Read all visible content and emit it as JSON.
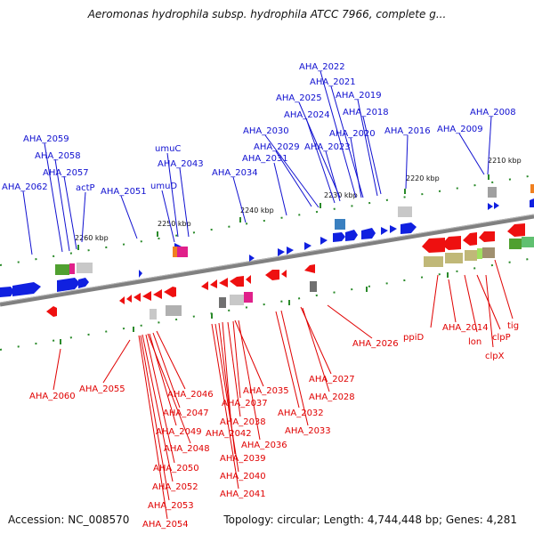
{
  "title": "Aeromonas hydrophila subsp. hydrophila ATCC 7966, complete g...",
  "footer": {
    "accession": "Accession: NC_008570",
    "topology": "Topology: circular; Length: 4,744,448 bp; Genes: 4,281"
  },
  "colors": {
    "plus_strand": "#1020e0",
    "minus_strand": "#ee1010",
    "backbone": "#808080",
    "tick": "#2a8a2a"
  },
  "scale_labels": [
    "2210 kbp",
    "2220 kbp",
    "2230 kbp",
    "2240 kbp",
    "2250 kbp",
    "2260 kbp"
  ],
  "upper_labels": [
    "AHA_2022",
    "AHA_2021",
    "AHA_2025",
    "AHA_2019",
    "AHA_2024",
    "AHA_2018",
    "AHA_2008",
    "AHA_2030",
    "AHA_2020",
    "AHA_2016",
    "AHA_2009",
    "AHA_2059",
    "umuC",
    "AHA_2029",
    "AHA_2023",
    "AHA_2058",
    "AHA_2031",
    "AHA_2043",
    "AHA_2057",
    "AHA_2034",
    "AHA_2062",
    "actP",
    "umuD",
    "AHA_2051"
  ],
  "lower_labels": [
    "AHA_2026",
    "ppiD",
    "AHA_2014",
    "lon",
    "clpP",
    "tig",
    "clpX",
    "AHA_2060",
    "AHA_2055",
    "AHA_2046",
    "AHA_2047",
    "AHA_2049",
    "AHA_2048",
    "AHA_2050",
    "AHA_2052",
    "AHA_2053",
    "AHA_2054",
    "AHA_2035",
    "AHA_2037",
    "AHA_2038",
    "AHA_2042",
    "AHA_2039",
    "AHA_2040",
    "AHA_2041",
    "AHA_2036",
    "AHA_2032",
    "AHA_2033",
    "AHA_2027",
    "AHA_2028"
  ]
}
